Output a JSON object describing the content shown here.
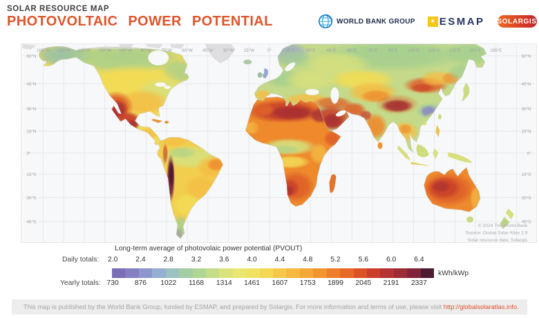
{
  "header": {
    "kicker": "SOLAR RESOURCE MAP",
    "title": "PHOTOVOLTAIC POWER POTENTIAL"
  },
  "logos": {
    "worldbank": "WORLD BANK GROUP",
    "esmap": "ESMAP",
    "solargis": "SOLARGIS",
    "icons": {
      "worldbank": "globe-icon",
      "esmap": "star-icon"
    }
  },
  "map": {
    "lon_labels": [
      "165°W",
      "150°W",
      "135°W",
      "120°W",
      "105°W",
      "90°W",
      "75°W",
      "60°W",
      "45°W",
      "30°W",
      "15°W",
      "0°",
      "15°E",
      "30°E",
      "45°E",
      "60°E",
      "75°E",
      "90°E",
      "105°E",
      "120°E",
      "135°E",
      "150°E",
      "165°E"
    ],
    "lat_labels": [
      "60°N",
      "45°N",
      "30°N",
      "15°N",
      "0°",
      "15°S",
      "30°S",
      "45°S"
    ],
    "copyright": [
      "© 2024 The World Bank",
      "Source: Global Solar Atlas 2.9",
      "Solar resource data: Solargis"
    ]
  },
  "legend": {
    "title": "Long-term average of photovolaic power potential (PVOUT)",
    "daily_label": "Daily totals:",
    "yearly_label": "Yearly totals:",
    "daily_values": [
      "2.0",
      "2.4",
      "2.8",
      "3.2",
      "3.6",
      "4.0",
      "4.4",
      "4.8",
      "5.2",
      "5.6",
      "6.0",
      "6.4"
    ],
    "yearly_values": [
      "730",
      "876",
      "1022",
      "1168",
      "1314",
      "1461",
      "1607",
      "1753",
      "1899",
      "2045",
      "2191",
      "2337"
    ],
    "unit": "kWh/kWp",
    "colorbar_colors": [
      "#7A6FB6",
      "#8380C4",
      "#8D97CE",
      "#95AED2",
      "#9BC2C1",
      "#A3CEA4",
      "#B0D693",
      "#C4DD88",
      "#D9E37D",
      "#E9E772",
      "#F1E263",
      "#F4D755",
      "#F6C84A",
      "#F7B83F",
      "#F5A737",
      "#F29430",
      "#EE7F2A",
      "#E76926",
      "#DC5126",
      "#CB3E2B",
      "#B43232",
      "#9C2B36",
      "#812439",
      "#4C1A32"
    ]
  },
  "footer": {
    "text": "This map is published by the World Bank Group, funded by ESMAP, and prepared by Solargis. For more information and terms of use, please visit ",
    "link": "http://globalsolaratlas.info."
  },
  "colors": {
    "accent": "#E0542B",
    "link": "#E2512A",
    "esmap_yellow": "#F7C713",
    "worldbank_navy": "#1E2A4A",
    "solargis_gradient": [
      "#F0681F",
      "#C4232D"
    ]
  }
}
